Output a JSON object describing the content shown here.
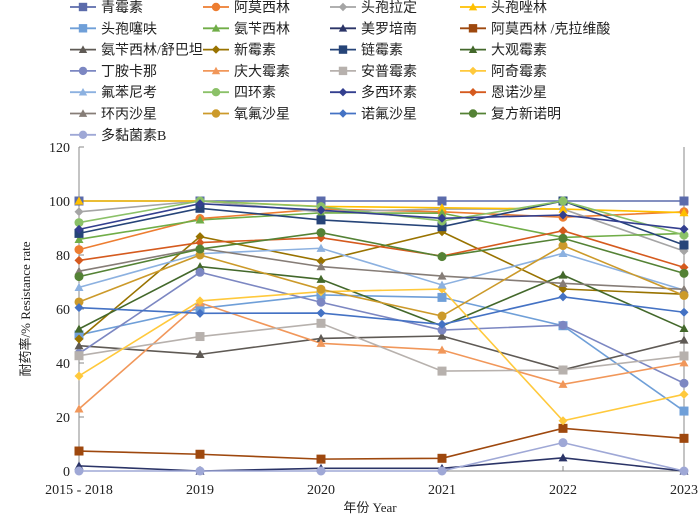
{
  "chart_data": {
    "type": "line",
    "title": "",
    "xlabel": "年份 Year",
    "ylabel": "耐药率/% Resistance rate",
    "ylim": [
      0,
      120
    ],
    "yticks": [
      0,
      20,
      40,
      60,
      80,
      100,
      120
    ],
    "grid": false,
    "legend_position": "top",
    "categories": [
      "2015 - 2018",
      "2019",
      "2020",
      "2021",
      "2022",
      "2023"
    ],
    "series": [
      {
        "name": "青霉素",
        "color": "#5b6bab",
        "marker": "square",
        "values": [
          100,
          100,
          100,
          100,
          100,
          100
        ]
      },
      {
        "name": "阿莫西林",
        "color": "#ed7d31",
        "marker": "circle",
        "values": [
          82,
          93.5,
          97,
          96,
          94,
          96
        ]
      },
      {
        "name": "头孢拉定",
        "color": "#a5a5a5",
        "marker": "diamond",
        "values": [
          96,
          100,
          96,
          97,
          97,
          81.5
        ]
      },
      {
        "name": "头孢唑林",
        "color": "#ffc000",
        "marker": "triangle",
        "values": [
          100,
          100,
          98,
          97.5,
          97,
          95.7
        ]
      },
      {
        "name": "头孢噻呋",
        "color": "#6f9fd8",
        "marker": "square",
        "values": [
          50.4,
          60.2,
          65.2,
          64.3,
          53.8,
          22.2
        ]
      },
      {
        "name": "氨苄西林",
        "color": "#70ad47",
        "marker": "triangle",
        "values": [
          85.8,
          93,
          95.6,
          95.5,
          86.5,
          88
        ]
      },
      {
        "name": "美罗培南",
        "color": "#2b3467",
        "marker": "triangle",
        "values": [
          1.9,
          0,
          1,
          1,
          4.9,
          0
        ]
      },
      {
        "name": "阿莫西林 /克拉维酸",
        "color": "#9e480e",
        "marker": "square",
        "values": [
          7.4,
          6.2,
          4.4,
          4.7,
          15.8,
          12.1
        ]
      },
      {
        "name": "氨苄西林/舒巴坦",
        "color": "#5f5a55",
        "marker": "triangle",
        "values": [
          46.4,
          43.2,
          49.1,
          50,
          37.5,
          48.5
        ]
      },
      {
        "name": "新霉素",
        "color": "#997300",
        "marker": "diamond",
        "values": [
          48.9,
          86.8,
          77.8,
          88.6,
          67.4,
          65.5
        ]
      },
      {
        "name": "链霉素",
        "color": "#264478",
        "marker": "square",
        "values": [
          88,
          97.3,
          93,
          90.5,
          100,
          83.7
        ]
      },
      {
        "name": "大观霉素",
        "color": "#43682b",
        "marker": "triangle",
        "values": [
          52.6,
          75.7,
          71,
          53.7,
          72.6,
          52.8
        ]
      },
      {
        "name": "丁胺卡那",
        "color": "#7c87c2",
        "marker": "circle",
        "values": [
          43.5,
          73.6,
          62.5,
          52.2,
          54,
          32.5
        ]
      },
      {
        "name": "庆大霉素",
        "color": "#f1975a",
        "marker": "triangle",
        "values": [
          23,
          62.3,
          47.3,
          44.8,
          32.1,
          40.1
        ]
      },
      {
        "name": "安普霉素",
        "color": "#b7b1ad",
        "marker": "square",
        "values": [
          42.7,
          49.8,
          54.7,
          37,
          37.4,
          42.6
        ]
      },
      {
        "name": "阿奇霉素",
        "color": "#ffc93c",
        "marker": "diamond",
        "values": [
          35.2,
          63,
          66.4,
          67.4,
          18.6,
          28.4
        ]
      },
      {
        "name": "氟苯尼考",
        "color": "#8cb1e0",
        "marker": "triangle",
        "values": [
          68,
          80.5,
          82.5,
          68.9,
          80.6,
          67
        ]
      },
      {
        "name": "四环素",
        "color": "#8bc168",
        "marker": "circle",
        "values": [
          92,
          100,
          97.9,
          92.6,
          100,
          87.4
        ]
      },
      {
        "name": "多西环素",
        "color": "#333f8f",
        "marker": "diamond",
        "values": [
          89.5,
          99,
          96.6,
          93.6,
          94.8,
          89.6
        ]
      },
      {
        "name": "恩诺沙星",
        "color": "#d55a1e",
        "marker": "diamond",
        "values": [
          78,
          84.6,
          86.4,
          79.6,
          89,
          75.4
        ]
      },
      {
        "name": "环丙沙星",
        "color": "#867d77",
        "marker": "triangle",
        "values": [
          74,
          82.5,
          75.7,
          72.2,
          69.5,
          67.3
        ]
      },
      {
        "name": "氧氟沙星",
        "color": "#cc9a2a",
        "marker": "circle",
        "values": [
          62.6,
          80,
          67.3,
          57.4,
          83.5,
          65
        ]
      },
      {
        "name": "诺氟沙星",
        "color": "#4472c4",
        "marker": "diamond",
        "values": [
          60.5,
          58.4,
          58.5,
          54.3,
          64.5,
          58.8
        ]
      },
      {
        "name": "复方新诺明",
        "color": "#548235",
        "marker": "circle",
        "values": [
          72,
          82.2,
          88.3,
          79.4,
          86.2,
          73.2
        ]
      },
      {
        "name": "多黏菌素B",
        "color": "#9fa8d6",
        "marker": "circle",
        "values": [
          0,
          0,
          0,
          0,
          10.5,
          0
        ]
      }
    ]
  }
}
